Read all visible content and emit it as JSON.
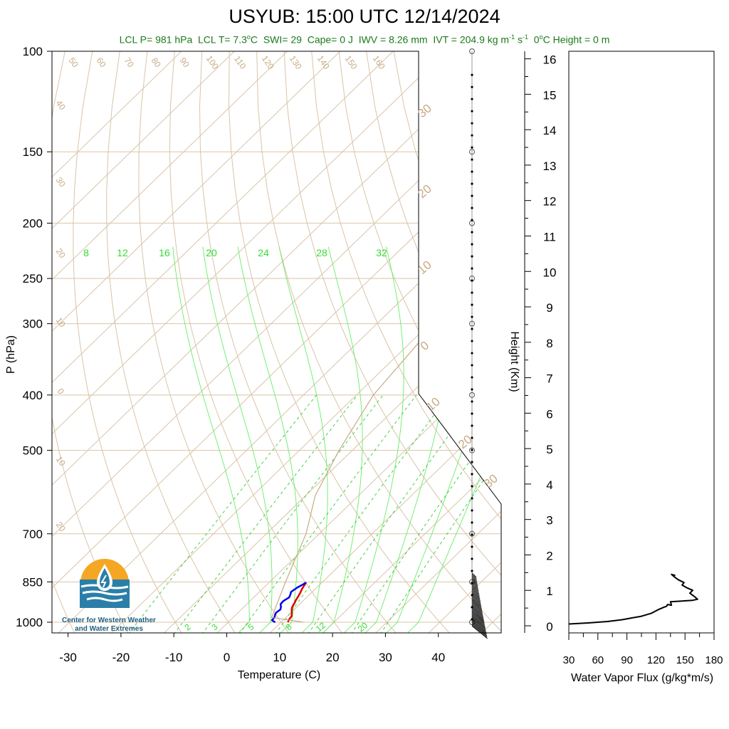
{
  "title": "USYUB: 15:00 UTC 12/14/2024",
  "subtitle": {
    "lcl_p": "LCL P= 981 hPa",
    "lcl_t_prefix": "LCL T= 7.3",
    "lcl_t_unit": "C",
    "swi": "SWI= 29",
    "cape": "Cape= 0 J",
    "iwv": "IWV = 8.26 mm",
    "ivt_prefix": "IVT = 204.9 kg m",
    "ivt_exp1": "-1",
    "ivt_mid": " s",
    "ivt_exp2": "-1",
    "zero_height_prefix": "0",
    "zero_height_suffix": "C Height = 0 m"
  },
  "logo": {
    "line1": "Center for Western Weather",
    "line2": "and Water Extremes"
  },
  "colors": {
    "isotherm": "#d9c4a8",
    "adiabat": "#d9c4a8",
    "label_tan": "#c8aa85",
    "moist_adiabat": "#66ee66",
    "mixing_ratio": "#33cc33",
    "temperature": "#e00000",
    "dewpoint": "#0000e6",
    "parcel": "#c8aa85",
    "flux": "#000000"
  },
  "chart_data": [
    {
      "type": "line",
      "name": "skew-t",
      "xlabel": "Temperature (C)",
      "ylabel": "P (hPa)",
      "y2label": "Height (Km)",
      "xlim": [
        -34,
        41
      ],
      "ylim": [
        1050,
        100
      ],
      "x_ticks": [
        -30,
        -20,
        -10,
        0,
        10,
        20,
        30,
        40
      ],
      "y_ticks": [
        100,
        150,
        200,
        250,
        300,
        400,
        500,
        700,
        850,
        1000
      ],
      "height_ticks": [
        0,
        1,
        2,
        3,
        4,
        5,
        6,
        7,
        8,
        9,
        10,
        11,
        12,
        13,
        14,
        15,
        16
      ],
      "isotherm_labels": [
        -30,
        -20,
        -10,
        0,
        10,
        20,
        30
      ],
      "left_temp_labels": [
        40,
        30,
        20,
        10,
        0,
        -10,
        -20
      ],
      "top_temp_labels": [
        50,
        60,
        70,
        80,
        90,
        100,
        110,
        120,
        130,
        140,
        150,
        160
      ],
      "moist_labels_top": [
        8,
        12,
        16,
        20,
        24,
        28,
        32
      ],
      "mixing_ratio_labels": [
        2,
        3,
        5,
        8,
        12,
        20
      ],
      "series": [
        {
          "name": "Temperature",
          "points": [
            [
              11.3,
              1000
            ],
            [
              11.0,
              990
            ],
            [
              10.8,
              975
            ],
            [
              10.3,
              965
            ],
            [
              9.8,
              955
            ],
            [
              9.3,
              945
            ],
            [
              9.0,
              935
            ],
            [
              8.8,
              925
            ],
            [
              8.5,
              915
            ],
            [
              8.2,
              900
            ],
            [
              7.9,
              888
            ],
            [
              7.5,
              875
            ],
            [
              7.2,
              862
            ],
            [
              7.0,
              852
            ]
          ]
        },
        {
          "name": "Dewpoint",
          "points": [
            [
              8.9,
              1000
            ],
            [
              8.5,
              997
            ],
            [
              7.9,
              992
            ],
            [
              7.8,
              980
            ],
            [
              7.4,
              970
            ],
            [
              7.2,
              962
            ],
            [
              7.4,
              950
            ],
            [
              7.0,
              940
            ],
            [
              6.4,
              930
            ],
            [
              6.3,
              918
            ],
            [
              6.7,
              905
            ],
            [
              6.4,
              895
            ],
            [
              6.0,
              885
            ],
            [
              6.3,
              870
            ],
            [
              6.8,
              858
            ],
            [
              7.0,
              852
            ]
          ]
        },
        {
          "name": "Parcel",
          "points": [
            [
              14.2,
              1000
            ],
            [
              7.3,
              981
            ],
            [
              3.0,
              850
            ],
            [
              -2.5,
              700
            ],
            [
              -8.2,
              600
            ],
            [
              -12.5,
              500
            ],
            [
              -16.8,
              400
            ],
            [
              -19.0,
              300
            ],
            [
              -20.8,
              250
            ],
            [
              -22.0,
              222
            ],
            [
              -17.5,
              200
            ],
            [
              -10.0,
              160
            ],
            [
              0.0,
              130
            ],
            [
              8.0,
              115
            ]
          ]
        }
      ],
      "wind_levels_hpa": [
        100,
        150,
        200,
        250,
        300,
        400,
        500,
        700,
        850,
        1000
      ]
    },
    {
      "type": "line",
      "name": "water-vapor-flux",
      "xlabel": "Water Vapor Flux (g/kg*m/s)",
      "xlim": [
        30,
        180
      ],
      "ylim": [
        0,
        16.6
      ],
      "x_ticks": [
        30,
        60,
        90,
        120,
        150,
        180
      ],
      "series": [
        {
          "name": "Flux",
          "points": [
            [
              30,
              0.05
            ],
            [
              50,
              0.08
            ],
            [
              70,
              0.12
            ],
            [
              85,
              0.17
            ],
            [
              95,
              0.22
            ],
            [
              105,
              0.27
            ],
            [
              115,
              0.35
            ],
            [
              122,
              0.45
            ],
            [
              128,
              0.52
            ],
            [
              131,
              0.55
            ],
            [
              132,
              0.6
            ],
            [
              136,
              0.58
            ],
            [
              135,
              0.68
            ],
            [
              147,
              0.7
            ],
            [
              158,
              0.72
            ],
            [
              163,
              0.75
            ],
            [
              160,
              0.82
            ],
            [
              155,
              0.92
            ],
            [
              158,
              1.0
            ],
            [
              152,
              1.07
            ],
            [
              147,
              1.15
            ],
            [
              149,
              1.22
            ],
            [
              143,
              1.3
            ],
            [
              139,
              1.38
            ],
            [
              136,
              1.45
            ],
            [
              140,
              1.42
            ]
          ]
        }
      ]
    }
  ]
}
